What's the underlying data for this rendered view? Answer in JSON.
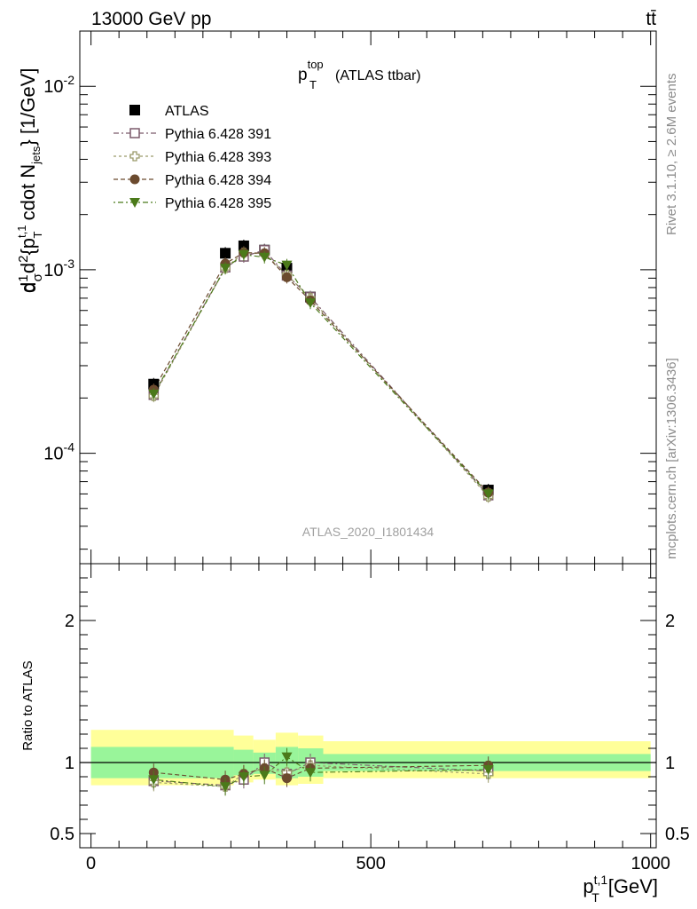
{
  "header": {
    "energy": "13000 GeV pp",
    "process": "tt̄"
  },
  "side_text": {
    "rivet": "Rivet 3.1.10, ≥ 2.6M events",
    "mcplots": "mcplots.cern.ch [arXiv:1306.3436]"
  },
  "watermark": "ATLAS_2020_I1801434",
  "plot_title": {
    "main": "p",
    "sup": "top",
    "sub": "T",
    "suffix": "(ATLAS ttbar)"
  },
  "colors": {
    "data": "#000000",
    "s391": "#7b5a6b",
    "s393": "#9a9a6a",
    "s394": "#6b4a2e",
    "s395": "#4b7a1a",
    "band_inner": "#99f59a",
    "band_outer": "#ffff99"
  },
  "chart_data": [
    {
      "type": "scatter",
      "yscale": "log",
      "ylim": [
        2.5e-05,
        0.02
      ],
      "xlim": [
        -20,
        1010
      ],
      "ylabel": "d²σⁿᶠᵈ / dσ d²{p_T^{t,1} cdot N_jets} [1/GeV]",
      "yticks": [
        {
          "value": 0.0001,
          "base": "10",
          "exp": "-4"
        },
        {
          "value": 0.001,
          "base": "10",
          "exp": "-3"
        },
        {
          "value": 0.01,
          "base": "10",
          "exp": "-2"
        }
      ],
      "legend_position": "top-left",
      "x": [
        112,
        240,
        273,
        310,
        350,
        392,
        710
      ],
      "series": [
        {
          "name": "ATLAS",
          "marker": "square-filled",
          "values": [
            0.000238,
            0.00123,
            0.00135,
            0.00128,
            0.00102,
            0.00071,
            6.3e-05
          ]
        },
        {
          "name": "Pythia 6.428 391",
          "marker": "square-open",
          "values": [
            0.000208,
            0.00103,
            0.00118,
            0.00128,
            0.00093,
            0.00071,
            5.9e-05
          ]
        },
        {
          "name": "Pythia 6.428 393",
          "marker": "cross-open",
          "values": [
            0.000205,
            0.00102,
            0.00124,
            0.00122,
            0.00094,
            0.0007,
            5.8e-05
          ]
        },
        {
          "name": "Pythia 6.428 394",
          "marker": "circle-filled",
          "values": [
            0.000222,
            0.00108,
            0.00124,
            0.00123,
            0.00091,
            0.00068,
            6.1e-05
          ]
        },
        {
          "name": "Pythia 6.428 395",
          "marker": "triangle-down-filled",
          "values": [
            0.00021,
            0.00102,
            0.00121,
            0.00117,
            0.00106,
            0.00066,
            6e-05
          ]
        }
      ]
    },
    {
      "type": "scatter",
      "ylim": [
        0.4,
        2.4
      ],
      "xlim": [
        -20,
        1010
      ],
      "ylabel": "Ratio to ATLAS",
      "xlabel": {
        "main": "p",
        "sub": "T",
        "sup": "t,1",
        "unit": "[GeV]"
      },
      "xticks": [
        0,
        500,
        1000
      ],
      "yticks": [
        0.5,
        1,
        2
      ],
      "bands": [
        {
          "x0": 0,
          "x1": 255,
          "inner": [
            0.89,
            1.11
          ],
          "outer": [
            0.84,
            1.23
          ]
        },
        {
          "x0": 255,
          "x1": 290,
          "inner": [
            0.91,
            1.09
          ],
          "outer": [
            0.86,
            1.19
          ]
        },
        {
          "x0": 290,
          "x1": 330,
          "inner": [
            0.92,
            1.07
          ],
          "outer": [
            0.88,
            1.16
          ]
        },
        {
          "x0": 330,
          "x1": 370,
          "inner": [
            0.89,
            1.11
          ],
          "outer": [
            0.84,
            1.21
          ]
        },
        {
          "x0": 370,
          "x1": 415,
          "inner": [
            0.9,
            1.1
          ],
          "outer": [
            0.85,
            1.19
          ]
        },
        {
          "x0": 415,
          "x1": 1000,
          "inner": [
            0.94,
            1.06
          ],
          "outer": [
            0.89,
            1.15
          ]
        }
      ],
      "x": [
        112,
        240,
        273,
        310,
        350,
        392,
        710
      ],
      "series": [
        {
          "name": "Pythia 6.428 391",
          "values": [
            0.87,
            0.84,
            0.88,
            1.0,
            0.92,
            1.0,
            0.94
          ]
        },
        {
          "name": "Pythia 6.428 393",
          "values": [
            0.86,
            0.83,
            0.92,
            0.96,
            0.93,
            0.98,
            0.92
          ]
        },
        {
          "name": "Pythia 6.428 394",
          "values": [
            0.93,
            0.88,
            0.92,
            0.96,
            0.89,
            0.96,
            0.98
          ]
        },
        {
          "name": "Pythia 6.428 395",
          "values": [
            0.88,
            0.83,
            0.9,
            0.91,
            1.04,
            0.93,
            0.95
          ]
        }
      ]
    }
  ]
}
